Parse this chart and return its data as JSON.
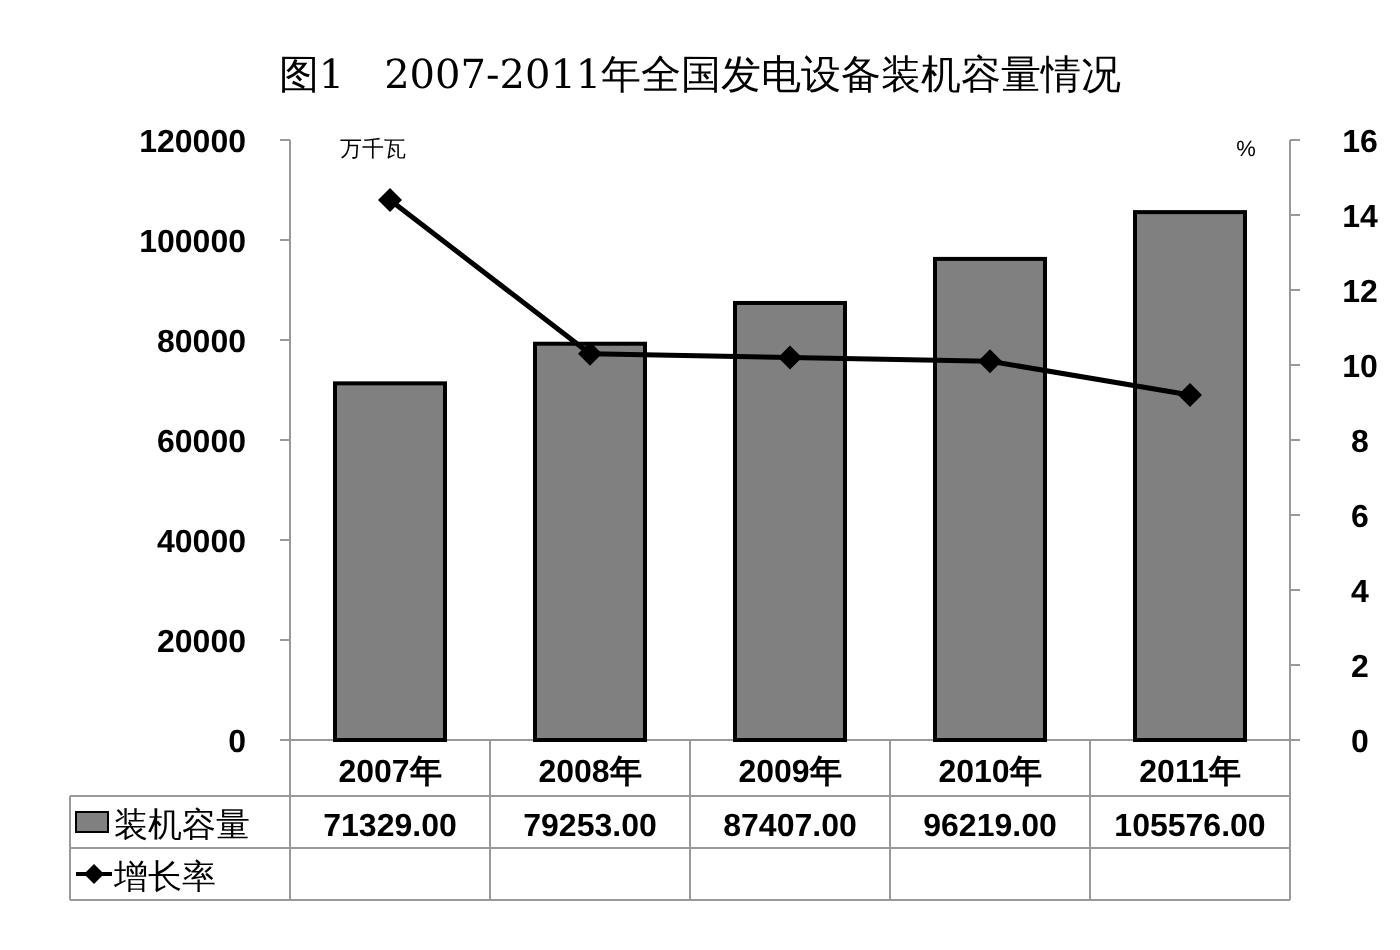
{
  "chart_data": {
    "type": "bar",
    "title": "图1　2007-2011年全国发电设备装机容量情况",
    "categories": [
      "2007年",
      "2008年",
      "2009年",
      "2010年",
      "2011年"
    ],
    "series": [
      {
        "name": "装机容量",
        "color": "#808080",
        "values": [
          71329,
          79253,
          87407,
          96219,
          105576
        ],
        "value_labels": [
          "71329.00",
          "79253.00",
          "87407.00",
          "96219.00",
          "105576.00"
        ]
      },
      {
        "name": "增长率",
        "type": "line",
        "axis": "y2",
        "color": "#000000",
        "marker": "diamond",
        "values": [
          14.4,
          10.3,
          10.2,
          10.1,
          9.2
        ]
      }
    ],
    "ylim": [
      0,
      120000
    ],
    "yticks": [
      0,
      20000,
      40000,
      60000,
      80000,
      100000,
      120000
    ],
    "y2lim": [
      0,
      16
    ],
    "y2ticks": [
      0,
      2,
      4,
      6,
      8,
      10,
      12,
      14,
      16
    ],
    "annotations": [
      "万千瓦",
      "%"
    ],
    "legend": "bottom",
    "grid": false
  }
}
